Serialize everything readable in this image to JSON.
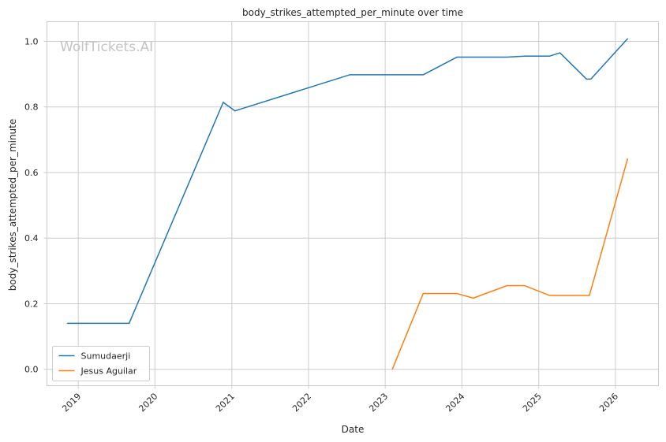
{
  "chart_data": {
    "type": "line",
    "title": "body_strikes_attempted_per_minute over time",
    "xlabel": "Date",
    "ylabel": "body_strikes_attempted_per_minute",
    "watermark": "WolfTickets.AI",
    "xlim": [
      "2018-08-05",
      "2026-07-25"
    ],
    "ylim": [
      -0.05,
      1.06
    ],
    "x_ticks": [
      "2019",
      "2020",
      "2021",
      "2022",
      "2023",
      "2024",
      "2025",
      "2026"
    ],
    "y_ticks": [
      "0.0",
      "0.2",
      "0.4",
      "0.6",
      "0.8",
      "1.0"
    ],
    "grid": true,
    "legend_position": "lower-left",
    "series": [
      {
        "name": "Sumudaerji",
        "color": "#1f77b4",
        "points": [
          {
            "x": "2018-11-10",
            "y": 0.14
          },
          {
            "x": "2019-08-31",
            "y": 0.14
          },
          {
            "x": "2020-11-21",
            "y": 0.814
          },
          {
            "x": "2021-01-16",
            "y": 0.788
          },
          {
            "x": "2022-07-16",
            "y": 0.898
          },
          {
            "x": "2023-07-01",
            "y": 0.898
          },
          {
            "x": "2023-12-09",
            "y": 0.952
          },
          {
            "x": "2024-08-03",
            "y": 0.952
          },
          {
            "x": "2024-10-26",
            "y": 0.955
          },
          {
            "x": "2025-02-22",
            "y": 0.955
          },
          {
            "x": "2025-04-12",
            "y": 0.965
          },
          {
            "x": "2025-08-16",
            "y": 0.885
          },
          {
            "x": "2025-09-06",
            "y": 0.885
          },
          {
            "x": "2026-02-28",
            "y": 1.008
          }
        ]
      },
      {
        "name": "Jesus Aguilar",
        "color": "#ff7f0e",
        "points": [
          {
            "x": "2023-02-04",
            "y": 0.0
          },
          {
            "x": "2023-07-01",
            "y": 0.231
          },
          {
            "x": "2023-12-09",
            "y": 0.231
          },
          {
            "x": "2024-02-24",
            "y": 0.217
          },
          {
            "x": "2024-08-03",
            "y": 0.255
          },
          {
            "x": "2024-10-26",
            "y": 0.255
          },
          {
            "x": "2025-02-22",
            "y": 0.225
          },
          {
            "x": "2025-08-30",
            "y": 0.225
          },
          {
            "x": "2026-02-28",
            "y": 0.642
          }
        ]
      }
    ]
  }
}
